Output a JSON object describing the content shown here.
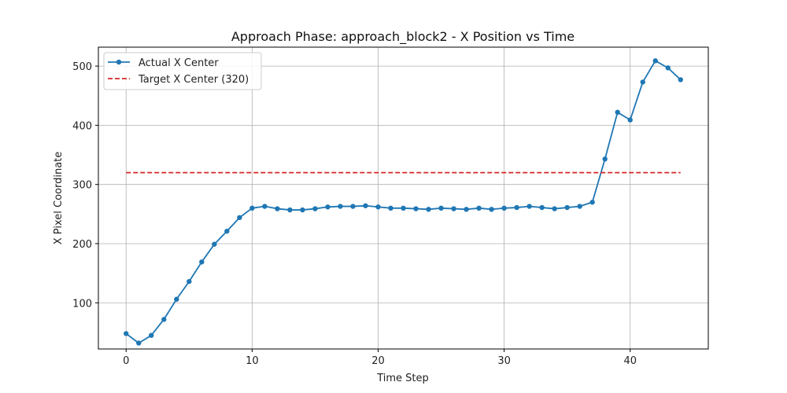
{
  "chart_data": {
    "type": "line",
    "title": "Approach Phase: approach_block2 - X Position vs Time",
    "xlabel": "Time Step",
    "ylabel": "X Pixel Coordinate",
    "xlim": [
      -2.2,
      46.2
    ],
    "ylim": [
      22,
      532
    ],
    "xticks": [
      0,
      10,
      20,
      30,
      40
    ],
    "yticks": [
      100,
      200,
      300,
      400,
      500
    ],
    "grid": true,
    "legend": "top-left",
    "series": [
      {
        "name": "Actual X Center",
        "color": "#1f77b4",
        "style": "solid-with-markers",
        "x": [
          0,
          1,
          2,
          3,
          4,
          5,
          6,
          7,
          8,
          9,
          10,
          11,
          12,
          13,
          14,
          15,
          16,
          17,
          18,
          19,
          20,
          21,
          22,
          23,
          24,
          25,
          26,
          27,
          28,
          29,
          30,
          31,
          32,
          33,
          34,
          35,
          36,
          37,
          38,
          39,
          40,
          41,
          42,
          43,
          44
        ],
        "values": [
          48,
          32,
          45,
          72,
          106,
          136,
          169,
          199,
          221,
          244,
          260,
          263,
          259,
          257,
          257,
          259,
          262,
          263,
          263,
          264,
          262,
          260,
          260,
          259,
          258,
          260,
          259,
          258,
          260,
          258,
          260,
          261,
          263,
          261,
          259,
          261,
          263,
          270,
          343,
          422,
          409,
          473,
          509,
          497,
          477
        ]
      },
      {
        "name": "Target X Center (320)",
        "color": "#d62728",
        "style": "dashed",
        "x": [
          0,
          44
        ],
        "values": [
          320,
          320
        ]
      }
    ]
  }
}
